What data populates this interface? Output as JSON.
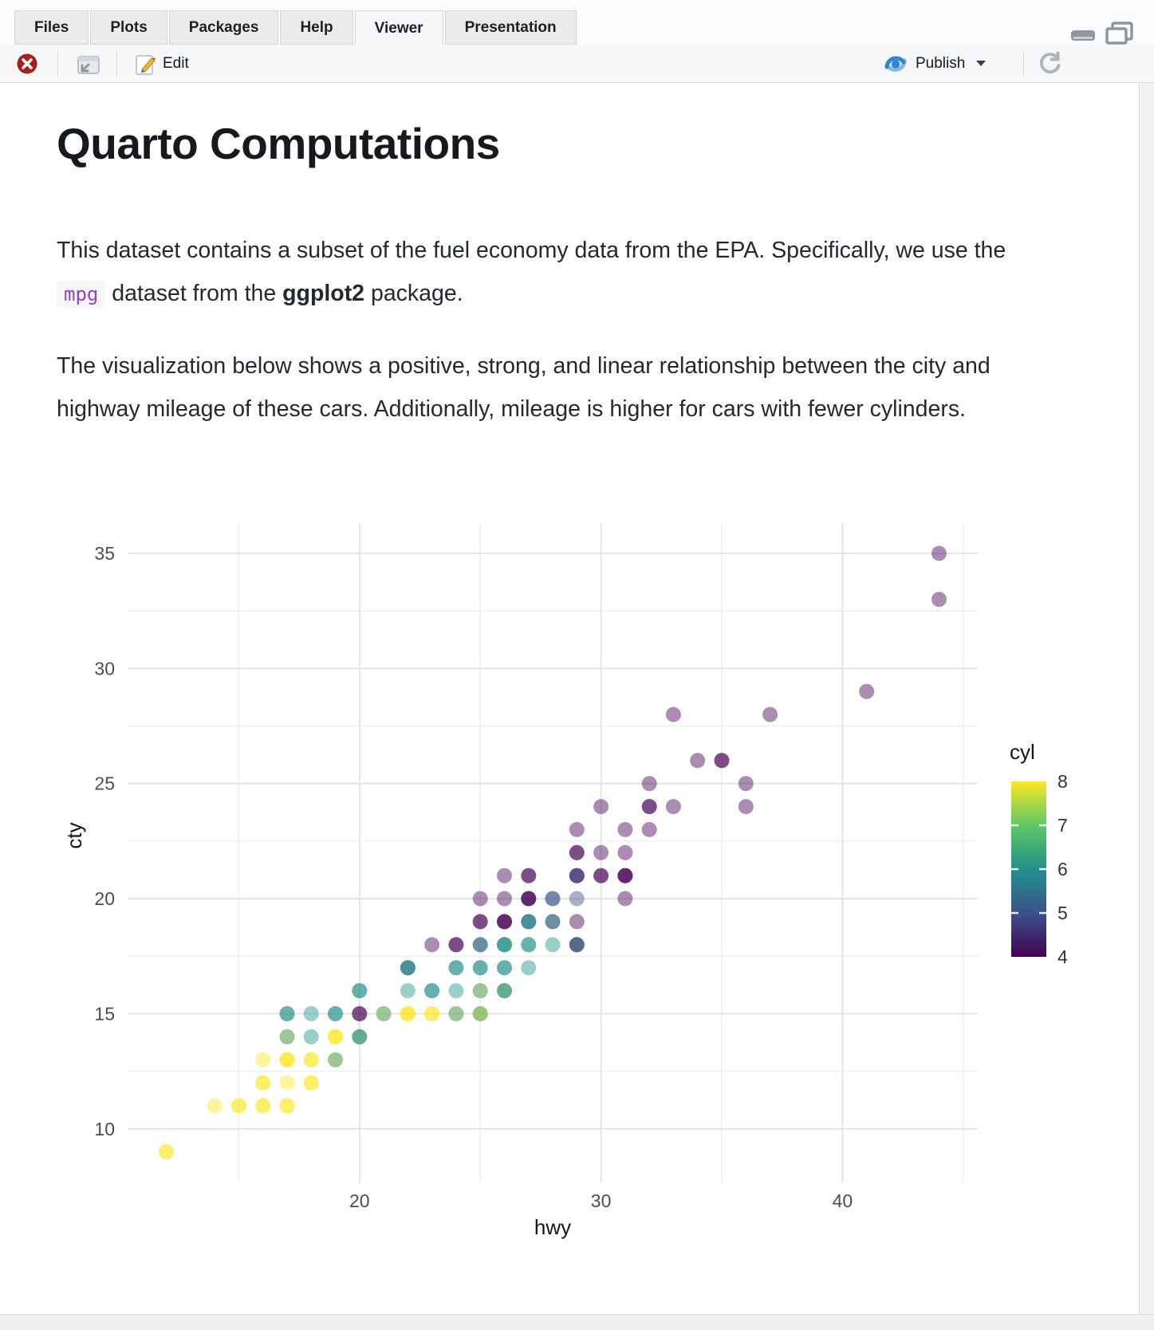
{
  "tabs": {
    "items": [
      {
        "label": "Files",
        "active": false
      },
      {
        "label": "Plots",
        "active": false
      },
      {
        "label": "Packages",
        "active": false
      },
      {
        "label": "Help",
        "active": false
      },
      {
        "label": "Viewer",
        "active": true
      },
      {
        "label": "Presentation",
        "active": false
      }
    ]
  },
  "toolbar": {
    "edit_label": "Edit",
    "publish_label": "Publish",
    "icons": {
      "stop": {
        "name": "stop-icon",
        "color": "#a81e1c"
      },
      "open_in_new_window": {
        "name": "open-in-new-window-icon",
        "color": "#8d959d"
      },
      "edit_pencil": {
        "name": "edit-pencil-icon",
        "color": "#e9b63c"
      },
      "publish": {
        "name": "publish-icon",
        "color": "#2e86d4"
      },
      "dropdown": {
        "name": "chevron-down-icon",
        "color": "#3a3f44"
      },
      "refresh": {
        "name": "refresh-icon",
        "color": "#aeb6bd"
      },
      "minimize": {
        "name": "minimize-icon",
        "color": "#8f969c"
      },
      "maximize": {
        "name": "maximize-icon",
        "color": "#8f969c"
      }
    }
  },
  "document": {
    "title": "Quarto Computations",
    "para1_pre": "This dataset contains a subset of the fuel economy data from the EPA. Specifically, we use the ",
    "para1_code": "mpg",
    "para1_mid": " dataset from the ",
    "para1_bold": "ggplot2",
    "para1_post": " package.",
    "para2": "The visualization below shows a positive, strong, and linear relationship between the city and highway mileage of these cars. Additionally, mileage is higher for cars with fewer cylinders."
  },
  "chart_data": {
    "type": "scatter",
    "xlabel": "hwy",
    "ylabel": "cty",
    "x_ticks": [
      20,
      30,
      40
    ],
    "x_minor_ticks": [
      15,
      25,
      35,
      45
    ],
    "y_ticks": [
      10,
      15,
      20,
      25,
      30,
      35
    ],
    "y_minor_ticks": [
      12.5,
      17.5,
      22.5,
      27.5,
      32.5
    ],
    "xlim": [
      10.4,
      45.6
    ],
    "ylim": [
      7.7,
      36.3
    ],
    "grid": "major+minor, light gray on white",
    "legend_position": "right",
    "legend": {
      "title": "cyl",
      "tick_labels": [
        8,
        7,
        6,
        5,
        4
      ],
      "range": [
        4,
        8
      ],
      "gradient_top_to_bottom": [
        "#FDE725",
        "#5DC863",
        "#21908C",
        "#3B528B",
        "#440154"
      ]
    },
    "cyl_colors": {
      "4": "#440154",
      "5": "#3B528B",
      "6": "#21908C",
      "8": "#FDE725"
    },
    "point_alpha": 0.45,
    "point_radius_px": 9.5,
    "points_format": [
      "hwy",
      "cty",
      "cyl",
      "overlap_count"
    ],
    "points": [
      [
        12,
        9,
        8,
        2
      ],
      [
        14,
        11,
        8,
        1
      ],
      [
        15,
        11,
        8,
        2
      ],
      [
        16,
        11,
        8,
        2
      ],
      [
        17,
        11,
        8,
        2
      ],
      [
        16,
        12,
        8,
        2
      ],
      [
        17,
        12,
        8,
        1
      ],
      [
        18,
        12,
        8,
        2
      ],
      [
        16,
        13,
        8,
        1
      ],
      [
        17,
        13,
        8,
        3
      ],
      [
        18,
        13,
        8,
        2
      ],
      [
        19,
        13,
        8,
        1
      ],
      [
        19,
        13,
        6,
        1
      ],
      [
        17,
        14,
        8,
        1
      ],
      [
        17,
        14,
        6,
        1
      ],
      [
        18,
        14,
        6,
        1
      ],
      [
        19,
        14,
        8,
        3
      ],
      [
        20,
        14,
        8,
        1
      ],
      [
        20,
        14,
        6,
        2
      ],
      [
        17,
        15,
        6,
        2
      ],
      [
        18,
        15,
        6,
        1
      ],
      [
        19,
        15,
        6,
        2
      ],
      [
        20,
        15,
        4,
        2
      ],
      [
        21,
        15,
        8,
        1
      ],
      [
        21,
        15,
        6,
        1
      ],
      [
        22,
        15,
        8,
        3
      ],
      [
        23,
        15,
        8,
        2
      ],
      [
        24,
        15,
        8,
        1
      ],
      [
        24,
        15,
        6,
        1
      ],
      [
        25,
        15,
        8,
        2
      ],
      [
        25,
        15,
        6,
        1
      ],
      [
        20,
        16,
        6,
        2
      ],
      [
        22,
        16,
        6,
        1
      ],
      [
        23,
        16,
        6,
        2
      ],
      [
        24,
        16,
        6,
        1
      ],
      [
        25,
        16,
        8,
        1
      ],
      [
        25,
        16,
        6,
        1
      ],
      [
        26,
        16,
        8,
        1
      ],
      [
        26,
        16,
        6,
        2
      ],
      [
        22,
        17,
        4,
        1
      ],
      [
        22,
        17,
        6,
        2
      ],
      [
        24,
        17,
        6,
        2
      ],
      [
        25,
        17,
        6,
        2
      ],
      [
        26,
        17,
        6,
        2
      ],
      [
        27,
        17,
        6,
        1
      ],
      [
        23,
        18,
        4,
        1
      ],
      [
        24,
        18,
        4,
        2
      ],
      [
        25,
        18,
        4,
        1
      ],
      [
        25,
        18,
        6,
        1
      ],
      [
        26,
        18,
        6,
        3
      ],
      [
        27,
        18,
        6,
        2
      ],
      [
        28,
        18,
        6,
        1
      ],
      [
        29,
        18,
        4,
        2
      ],
      [
        29,
        18,
        6,
        1
      ],
      [
        25,
        19,
        4,
        2
      ],
      [
        26,
        19,
        4,
        3
      ],
      [
        27,
        19,
        4,
        1
      ],
      [
        27,
        19,
        6,
        2
      ],
      [
        28,
        19,
        4,
        1
      ],
      [
        28,
        19,
        6,
        1
      ],
      [
        29,
        19,
        4,
        1
      ],
      [
        25,
        20,
        4,
        1
      ],
      [
        26,
        20,
        4,
        1
      ],
      [
        27,
        20,
        4,
        3
      ],
      [
        28,
        20,
        5,
        2
      ],
      [
        29,
        20,
        5,
        1
      ],
      [
        31,
        20,
        4,
        1
      ],
      [
        26,
        21,
        4,
        1
      ],
      [
        27,
        21,
        4,
        2
      ],
      [
        29,
        21,
        4,
        2
      ],
      [
        29,
        21,
        5,
        1
      ],
      [
        30,
        21,
        4,
        2
      ],
      [
        31,
        21,
        4,
        3
      ],
      [
        29,
        22,
        4,
        2
      ],
      [
        30,
        22,
        4,
        1
      ],
      [
        31,
        22,
        4,
        1
      ],
      [
        29,
        23,
        4,
        1
      ],
      [
        31,
        23,
        4,
        1
      ],
      [
        32,
        23,
        4,
        1
      ],
      [
        30,
        24,
        4,
        1
      ],
      [
        32,
        24,
        4,
        2
      ],
      [
        33,
        24,
        4,
        1
      ],
      [
        36,
        24,
        4,
        1
      ],
      [
        32,
        25,
        4,
        1
      ],
      [
        36,
        25,
        4,
        1
      ],
      [
        34,
        26,
        4,
        1
      ],
      [
        35,
        26,
        4,
        2
      ],
      [
        33,
        28,
        4,
        1
      ],
      [
        37,
        28,
        4,
        1
      ],
      [
        41,
        29,
        4,
        1
      ],
      [
        44,
        33,
        4,
        1
      ],
      [
        44,
        35,
        4,
        1
      ]
    ]
  }
}
